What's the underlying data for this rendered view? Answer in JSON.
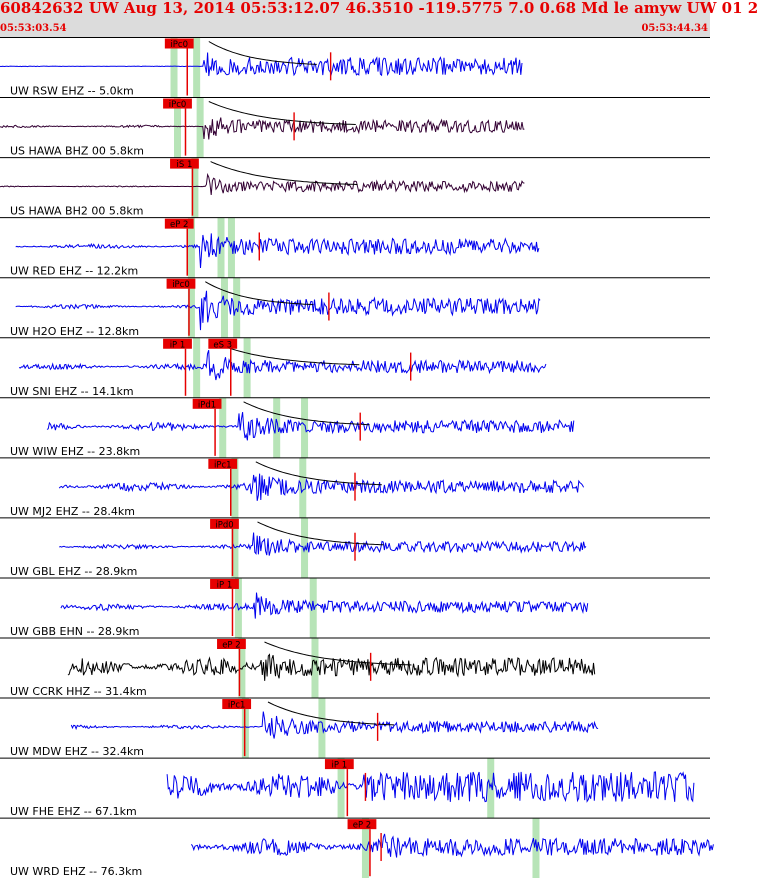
{
  "header": {
    "title": "60842632 UW Aug 13, 2014 05:53:12.07   46.3510 -119.5775  7.0 0.68 Md le amyw UW 01   2",
    "start_time": "05:53:03.54",
    "end_time": "05:53:44.34"
  },
  "colors": {
    "header_bg": "#dcdcdc",
    "header_text": "#e60000",
    "trace_blue": "#0000ee",
    "trace_black": "#000000",
    "trace_purple": "#330033",
    "pick_red": "#e60000",
    "pick_window_green": "#b7e4b7",
    "separator": "#000000"
  },
  "chart_data": {
    "type": "seismogram",
    "time_range": [
      "05:53:03.54",
      "05:53:44.34"
    ],
    "x_range_seconds": [
      0,
      40.8
    ],
    "traces": [
      {
        "label": "UW RSW EHZ -- 5.0km",
        "color": "#0000ee",
        "data_start": 0,
        "data_end": 30.0,
        "onset": 11.7,
        "amplitude": 0.85,
        "noise": 0.01,
        "decay": 0.18,
        "coda": 3,
        "picks": [
          {
            "label": "iPc0",
            "t": 10.3
          }
        ],
        "green_windows": [
          10.0,
          11.3
        ],
        "end_marker": 19.0
      },
      {
        "label": "US HAWA BHZ 00 5.8km",
        "color": "#330033",
        "data_start": 0,
        "data_end": 30.2,
        "onset": 11.7,
        "amplitude": 0.6,
        "noise": 0.04,
        "decay": 0.08,
        "coda": 4,
        "picks": [
          {
            "label": "iPc0",
            "t": 10.2
          }
        ],
        "green_windows": [
          10.2,
          11.5
        ],
        "end_marker": 16.9
      },
      {
        "label": "US HAWA BH2 00 5.8km",
        "color": "#330033",
        "data_start": 0,
        "data_end": 30.2,
        "onset": 11.8,
        "amplitude": 0.5,
        "noise": 0.02,
        "decay": 0.1,
        "coda": 4,
        "picks": [
          {
            "label": "iS 1",
            "t": 10.6
          }
        ],
        "green_windows": [
          11.2
        ],
        "end_marker": null
      },
      {
        "label": "UW RED EHZ -- 12.2km",
        "color": "#0000ee",
        "data_start": 0.9,
        "data_end": 31.0,
        "onset": 11.5,
        "amplitude": 0.75,
        "noise": 0.08,
        "decay": 0.07,
        "coda": 0,
        "picks": [
          {
            "label": "eP 2",
            "t": 10.3
          }
        ],
        "green_windows": [
          11.0,
          12.7,
          13.3
        ],
        "end_marker": 14.9
      },
      {
        "label": "UW H2O EHZ -- 12.8km",
        "color": "#0000ee",
        "data_start": 0.9,
        "data_end": 31.1,
        "onset": 11.5,
        "amplitude": 0.8,
        "noise": 0.07,
        "decay": 0.08,
        "coda": 3,
        "picks": [
          {
            "label": "iPc0",
            "t": 10.4
          }
        ],
        "green_windows": [
          11.0,
          12.9,
          13.6
        ],
        "end_marker": 18.9
      },
      {
        "label": "UW SNI EHZ -- 14.1km",
        "color": "#0000ee",
        "data_start": 1.1,
        "data_end": 31.4,
        "onset": 11.9,
        "amplitude": 0.6,
        "noise": 0.1,
        "decay": 0.05,
        "coda": 4,
        "picks": [
          {
            "label": "iP 1",
            "t": 10.2
          },
          {
            "label": "eS 3",
            "t": 12.8
          }
        ],
        "green_windows": [
          11.3,
          14.2
        ],
        "end_marker": 23.6
      },
      {
        "label": "UW WIW EHZ -- 23.8km",
        "color": "#0000ee",
        "data_start": 2.7,
        "data_end": 33.0,
        "onset": 13.7,
        "amplitude": 0.6,
        "noise": 0.14,
        "decay": 0.05,
        "coda": 3.5,
        "picks": [
          {
            "label": "iPd1",
            "t": 11.9
          }
        ],
        "green_windows": [
          12.8,
          15.9,
          17.5
        ],
        "end_marker": 20.7
      },
      {
        "label": "UW MJ2 EHZ -- 28.4km",
        "color": "#0000ee",
        "data_start": 3.4,
        "data_end": 33.6,
        "onset": 14.4,
        "amplitude": 0.6,
        "noise": 0.16,
        "decay": 0.05,
        "coda": 3.5,
        "picks": [
          {
            "label": "iPc1",
            "t": 12.8
          }
        ],
        "green_windows": [
          13.5,
          17.4
        ],
        "end_marker": 20.4
      },
      {
        "label": "UW GBL EHZ -- 28.9km",
        "color": "#0000ee",
        "data_start": 3.4,
        "data_end": 33.7,
        "onset": 14.5,
        "amplitude": 0.5,
        "noise": 0.08,
        "decay": 0.05,
        "coda": 3.5,
        "picks": [
          {
            "label": "iPd0",
            "t": 12.9
          }
        ],
        "green_windows": [
          13.5,
          17.5
        ],
        "end_marker": 20.4
      },
      {
        "label": "UW GBB EHN -- 28.9km",
        "color": "#0000ee",
        "data_start": 3.5,
        "data_end": 33.8,
        "onset": 14.6,
        "amplitude": 0.55,
        "noise": 0.12,
        "decay": 0.06,
        "coda": 0,
        "picks": [
          {
            "label": "iP 1",
            "t": 12.9
          }
        ],
        "green_windows": [
          13.7,
          18.0
        ],
        "end_marker": null
      },
      {
        "label": "UW CCRK HHZ -- 31.4km",
        "color": "#000000",
        "data_start": 3.9,
        "data_end": 34.2,
        "onset": 14.9,
        "amplitude": 0.6,
        "noise": 0.3,
        "decay": 0.04,
        "coda": 4,
        "picks": [
          {
            "label": "eP 2",
            "t": 13.3
          }
        ],
        "green_windows": [
          13.9,
          18.1
        ],
        "end_marker": 21.3
      },
      {
        "label": "UW MDW EHZ -- 32.4km",
        "color": "#0000ee",
        "data_start": 4.1,
        "data_end": 34.4,
        "onset": 15.1,
        "amplitude": 0.55,
        "noise": 0.07,
        "decay": 0.05,
        "coda": 3.5,
        "picks": [
          {
            "label": "iPc1",
            "t": 13.6
          }
        ],
        "green_windows": [
          14.1,
          18.5
        ],
        "end_marker": 21.7
      },
      {
        "label": "UW FHE EHZ -- 67.1km",
        "color": "#0000ee",
        "data_start": 9.6,
        "data_end": 39.9,
        "onset": 20.9,
        "amplitude": 0.55,
        "noise": 0.5,
        "decay": 0.04,
        "coda": 0,
        "picks": [
          {
            "label": "iP 1",
            "t": 19.5
          }
        ],
        "green_windows": [
          19.6,
          28.2
        ],
        "end_marker": 21.0
      },
      {
        "label": "UW WRD EHZ -- 76.3km",
        "color": "#0000ee",
        "data_start": 11.0,
        "data_end": 41.0,
        "onset": 21.9,
        "amplitude": 0.55,
        "noise": 0.3,
        "decay": 0.03,
        "coda": 0,
        "picks": [
          {
            "label": "eP 2",
            "t": 20.8
          }
        ],
        "green_windows": [
          21.0,
          30.8
        ],
        "end_marker": 21.9
      }
    ]
  }
}
